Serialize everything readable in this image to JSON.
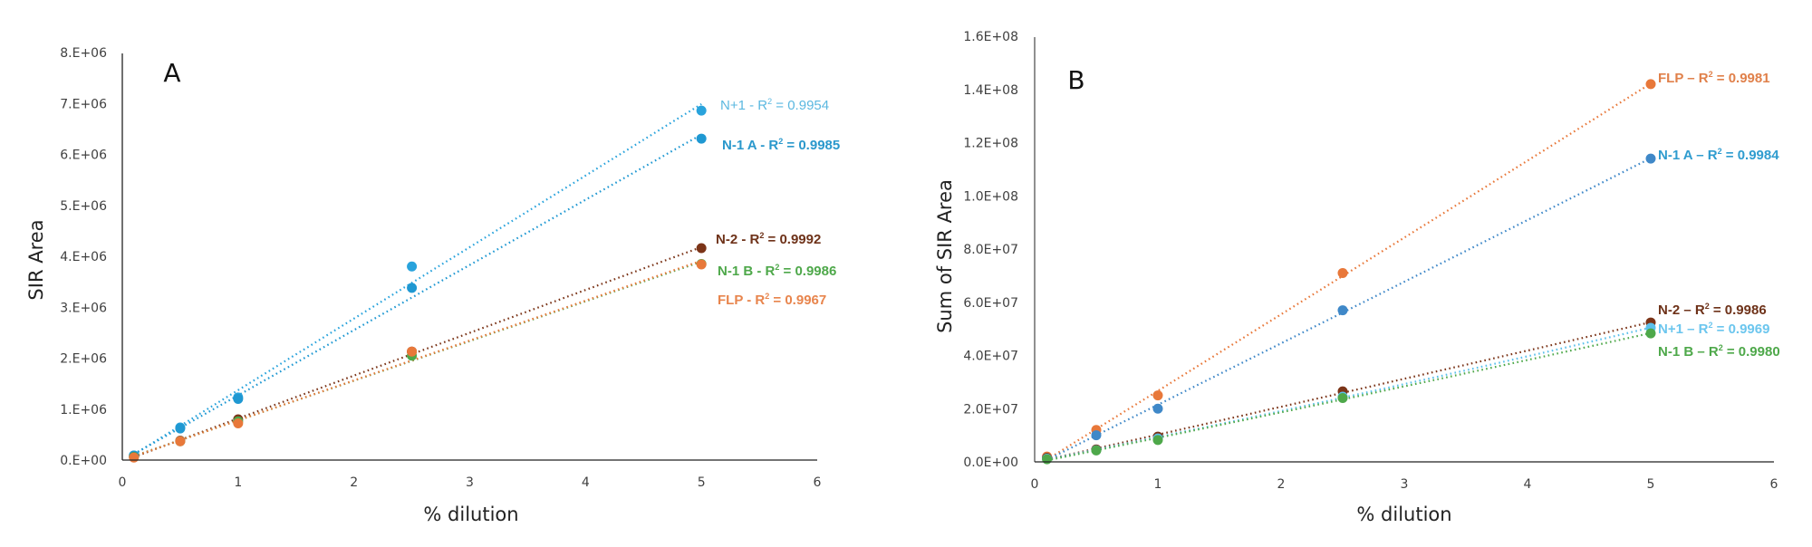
{
  "chart_data": [
    {
      "id": "A",
      "type": "scatter",
      "panel_label": "A",
      "title": "",
      "xlabel": "% dilution",
      "ylabel": "SIR Area",
      "xlim": [
        0,
        6
      ],
      "ylim": [
        0,
        8000000
      ],
      "x_ticks": [
        0,
        1,
        2,
        3,
        4,
        5,
        6
      ],
      "x_tick_labels": [
        "0",
        "1",
        "2",
        "3",
        "4",
        "5",
        "6"
      ],
      "y_ticks": [
        0,
        1000000,
        2000000,
        3000000,
        4000000,
        5000000,
        6000000,
        7000000,
        8000000
      ],
      "y_tick_labels": [
        "0.E+00",
        "1.E+06",
        "2.E+06",
        "3.E+06",
        "4.E+06",
        "5.E+06",
        "6.E+06",
        "7.E+06",
        "8.E+06"
      ],
      "grid": false,
      "trendline": "linear",
      "x": [
        0.1,
        0.5,
        1,
        2.5,
        5
      ],
      "series": [
        {
          "name": "N+1",
          "color": "#29a3dc",
          "label_color": "#5bb8e0",
          "label": "N+1 - R² = 0.9954",
          "label_bold": false,
          "values": [
            90000,
            640000,
            1230000,
            3800000,
            6860000
          ]
        },
        {
          "name": "N-1 A",
          "color": "#1f98d2",
          "label_color": "#2a98cc",
          "label": "N-1 A - R² = 0.9985",
          "label_bold": true,
          "values": [
            90000,
            620000,
            1200000,
            3380000,
            6310000
          ]
        },
        {
          "name": "N-2",
          "color": "#7b3418",
          "label_color": "#6e3219",
          "label": "N-2 - R² = 0.9992",
          "label_bold": true,
          "values": [
            60000,
            380000,
            800000,
            2130000,
            4160000
          ]
        },
        {
          "name": "N-1 B",
          "color": "#4ea84a",
          "label_color": "#4ea84a",
          "label": "N-1 B - R² = 0.9986",
          "label_bold": true,
          "values": [
            60000,
            370000,
            760000,
            2050000,
            3850000
          ]
        },
        {
          "name": "FLP",
          "color": "#e8783a",
          "label_color": "#e8854d",
          "label": "FLP - R² = 0.9967",
          "label_bold": true,
          "values": [
            50000,
            370000,
            720000,
            2130000,
            3840000
          ]
        }
      ]
    },
    {
      "id": "B",
      "type": "scatter",
      "panel_label": "B",
      "title": "",
      "xlabel": "% dilution",
      "ylabel": "Sum of SIR Area",
      "xlim": [
        0,
        6
      ],
      "ylim": [
        0,
        160000000
      ],
      "x_ticks": [
        0,
        1,
        2,
        3,
        4,
        5,
        6
      ],
      "x_tick_labels": [
        "0",
        "1",
        "2",
        "3",
        "4",
        "5",
        "6"
      ],
      "y_ticks": [
        0,
        20000000,
        40000000,
        60000000,
        80000000,
        100000000,
        120000000,
        140000000,
        160000000
      ],
      "y_tick_labels": [
        "0.0E+00",
        "2.0E+07",
        "4.0E+07",
        "6.0E+07",
        "8.0E+07",
        "1.0E+08",
        "1.2E+08",
        "1.4E+08",
        "1.6E+08"
      ],
      "grid": false,
      "trendline": "polynomial",
      "x": [
        0.1,
        0.5,
        1,
        2.5,
        5
      ],
      "series": [
        {
          "name": "FLP",
          "color": "#e8783a",
          "label_color": "#e0804a",
          "label": "FLP – R² = 0.9981",
          "label_bold": true,
          "values": [
            2000000,
            12000000,
            25000000,
            71000000,
            142000000
          ]
        },
        {
          "name": "N-1 A",
          "color": "#3f88c8",
          "label_color": "#2f9ccf",
          "label": "N-1 A – R² = 0.9984",
          "label_bold": true,
          "values": [
            1500000,
            10000000,
            20000000,
            57000000,
            114000000
          ]
        },
        {
          "name": "N-2",
          "color": "#7b3418",
          "label_color": "#6e3219",
          "label": "N-2 – R² = 0.9986",
          "label_bold": true,
          "values": [
            1500000,
            4700000,
            9500000,
            26500000,
            52400000
          ]
        },
        {
          "name": "N+1",
          "color": "#5bc0eb",
          "label_color": "#6cc6ee",
          "label": "N+1 – R² = 0.9969",
          "label_bold": true,
          "values": [
            1200000,
            4400000,
            8800000,
            24500000,
            50400000
          ]
        },
        {
          "name": "N-1 B",
          "color": "#4ea84a",
          "label_color": "#4ea84a",
          "label": "N-1 B – R² = 0.9980",
          "label_bold": true,
          "values": [
            1000000,
            4300000,
            8200000,
            24000000,
            48300000
          ]
        }
      ]
    }
  ]
}
